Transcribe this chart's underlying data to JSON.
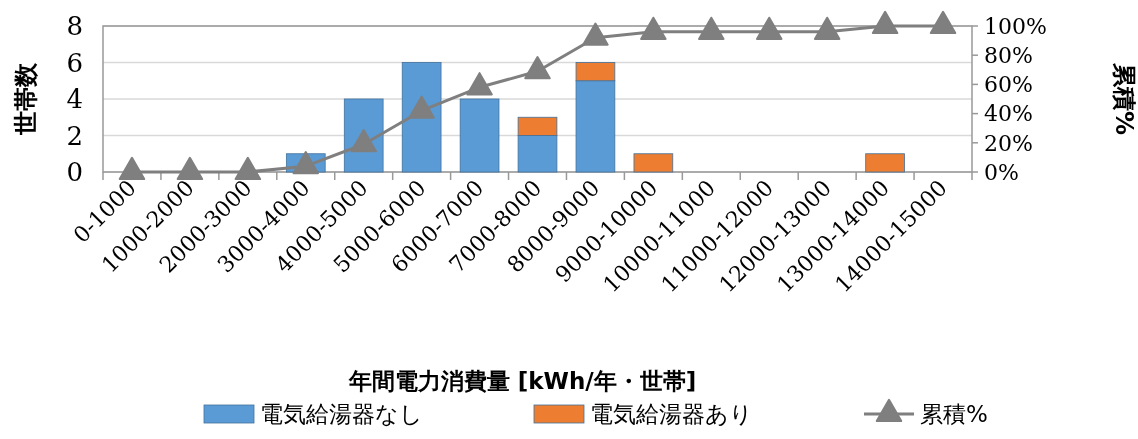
{
  "chart_data": {
    "type": "bar",
    "stacked": true,
    "xlabel": "年間電力消費量 [kWh/年・世帯]",
    "ylabel": "世帯数",
    "y2label": "累積%",
    "categories": [
      "0-1000",
      "1000-2000",
      "2000-3000",
      "3000-4000",
      "4000-5000",
      "5000-6000",
      "6000-7000",
      "7000-8000",
      "8000-9000",
      "9000-10000",
      "10000-11000",
      "11000-12000",
      "12000-13000",
      "13000-14000",
      "14000-15000"
    ],
    "series": [
      {
        "name": "電気給湯器なし",
        "color": "#5b9bd5",
        "values": [
          0,
          0,
          0,
          1,
          4,
          6,
          4,
          2,
          5,
          0,
          0,
          0,
          0,
          0,
          0
        ]
      },
      {
        "name": "電気給湯器あり",
        "color": "#ed7d31",
        "values": [
          0,
          0,
          0,
          0,
          0,
          0,
          0,
          1,
          1,
          1,
          0,
          0,
          0,
          1,
          0
        ]
      },
      {
        "name": "累積%",
        "type": "line",
        "axis": "y2",
        "color": "#7f7f7f",
        "marker": "triangle",
        "values": [
          0,
          0,
          0,
          4,
          19,
          42,
          58,
          69,
          92,
          96,
          96,
          96,
          96,
          100,
          100
        ]
      }
    ],
    "ylim": [
      0,
      8
    ],
    "yticks": [
      0,
      2,
      4,
      6,
      8
    ],
    "y2lim": [
      0,
      100
    ],
    "y2ticks": [
      {
        "value": 0,
        "label": "0%"
      },
      {
        "value": 20,
        "label": "20%"
      },
      {
        "value": 40,
        "label": "40%"
      },
      {
        "value": 60,
        "label": "60%"
      },
      {
        "value": 80,
        "label": "80%"
      },
      {
        "value": 100,
        "label": "100%"
      }
    ],
    "grid": "y",
    "legend": "bottom"
  }
}
